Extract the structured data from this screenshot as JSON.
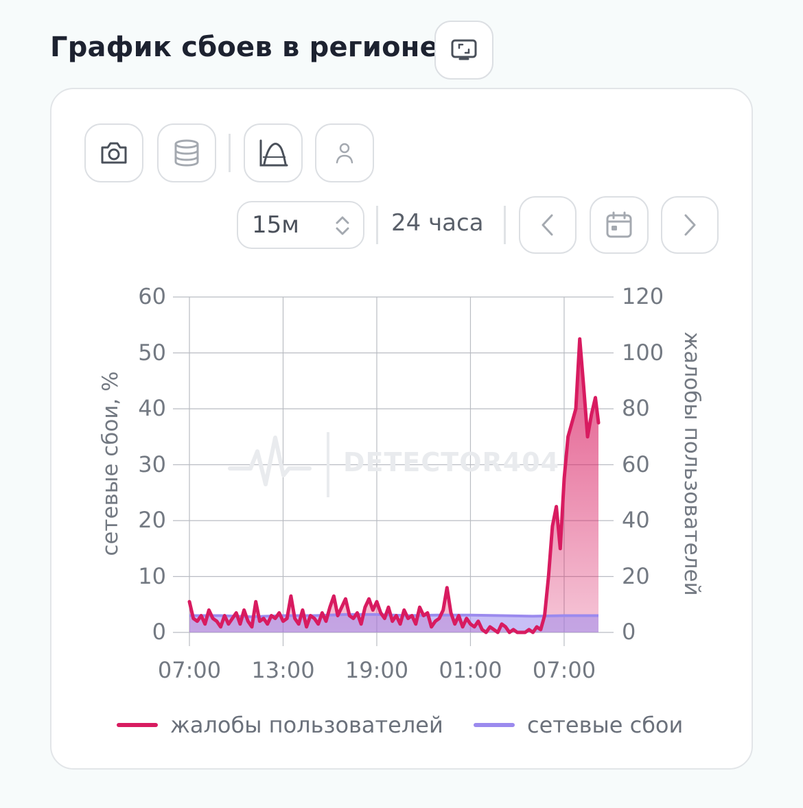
{
  "page": {
    "title": "График сбоев в регионе"
  },
  "toolbar": {
    "fullscreen_icon": "monitor-icon",
    "screenshot_icon": "camera-icon",
    "data_icon": "database-icon",
    "chart_mode_icon": "chart-curve-icon",
    "user_icon": "user-icon"
  },
  "controls": {
    "interval_value": "15м",
    "range_label": "24 часа",
    "prev_icon": "chevron-left-icon",
    "calendar_icon": "calendar-icon",
    "next_icon": "chevron-right-icon"
  },
  "watermark": {
    "text": "DETECTOR404"
  },
  "colors": {
    "complaints": "#d81b60",
    "network": "#9b8aee",
    "grid": "#b9bcc2",
    "tick_text": "#737982"
  },
  "chart_data": {
    "type": "area",
    "x_ticks": [
      "07:00",
      "13:00",
      "19:00",
      "01:00",
      "07:00"
    ],
    "x_range_hours": [
      0,
      26.2
    ],
    "x_tick_hours": [
      0,
      6,
      12,
      18,
      24
    ],
    "left_axis": {
      "label": "сетевые сбои, %",
      "ylim": [
        0,
        60
      ],
      "ticks": [
        "0",
        "10",
        "20",
        "30",
        "40",
        "50",
        "60"
      ]
    },
    "right_axis": {
      "label": "жалобы пользователей",
      "ylim": [
        0,
        120
      ],
      "ticks": [
        "0",
        "20",
        "40",
        "60",
        "80",
        "100",
        "120"
      ]
    },
    "legend": [
      {
        "name": "жалобы пользователей",
        "color": "#d81b60"
      },
      {
        "name": "сетевые сбои",
        "color": "#9b8aee"
      }
    ],
    "series": [
      {
        "name": "жалобы пользователей",
        "axis": "right",
        "x": [
          0,
          0.25,
          0.5,
          0.75,
          1,
          1.25,
          1.5,
          1.75,
          2,
          2.25,
          2.5,
          2.75,
          3,
          3.25,
          3.5,
          3.75,
          4,
          4.25,
          4.5,
          4.75,
          5,
          5.25,
          5.5,
          5.75,
          6,
          6.25,
          6.5,
          6.75,
          7,
          7.25,
          7.5,
          7.75,
          8,
          8.25,
          8.5,
          8.75,
          9,
          9.25,
          9.5,
          9.75,
          10,
          10.25,
          10.5,
          10.75,
          11,
          11.25,
          11.5,
          11.75,
          12,
          12.25,
          12.5,
          12.75,
          13,
          13.25,
          13.5,
          13.75,
          14,
          14.25,
          14.5,
          14.75,
          15,
          15.25,
          15.5,
          15.75,
          16,
          16.25,
          16.5,
          16.75,
          17,
          17.25,
          17.5,
          17.75,
          18,
          18.25,
          18.5,
          18.75,
          19,
          19.25,
          19.5,
          19.75,
          20,
          20.25,
          20.5,
          20.75,
          21,
          21.25,
          21.5,
          21.75,
          22,
          22.25,
          22.5,
          22.75,
          23,
          23.25,
          23.5,
          23.75,
          24,
          24.25,
          24.5,
          24.75,
          25,
          25.25,
          25.5,
          25.75,
          26,
          26.2
        ],
        "values": [
          11,
          5,
          4,
          6,
          3,
          8,
          5,
          4,
          2,
          6,
          3,
          5,
          7,
          3,
          8,
          4,
          2,
          11,
          4,
          5,
          3,
          6,
          5,
          7,
          4,
          5,
          13,
          5,
          3,
          8,
          2,
          6,
          5,
          3,
          7,
          4,
          9,
          13,
          6,
          9,
          12,
          6,
          5,
          7,
          3,
          9,
          12,
          8,
          11,
          7,
          5,
          9,
          4,
          6,
          3,
          8,
          5,
          6,
          3,
          9,
          6,
          7,
          2,
          4,
          5,
          8,
          16,
          7,
          3,
          6,
          2,
          5,
          3,
          2,
          4,
          1,
          0,
          2,
          1,
          0,
          3,
          2,
          0,
          1,
          0,
          0,
          0,
          1,
          0,
          2,
          1,
          6,
          20,
          38,
          45,
          30,
          55,
          70,
          75,
          80,
          105,
          88,
          70,
          78,
          84,
          75
        ]
      },
      {
        "name": "сетевые сбои",
        "axis": "left",
        "x": [
          0,
          2,
          4,
          6,
          8,
          10,
          12,
          14,
          16,
          18,
          20,
          22,
          24,
          26.2
        ],
        "values": [
          3,
          3,
          2.8,
          3,
          3,
          3.2,
          3.2,
          3,
          3.1,
          3.1,
          3,
          2.9,
          3,
          3
        ]
      }
    ]
  }
}
